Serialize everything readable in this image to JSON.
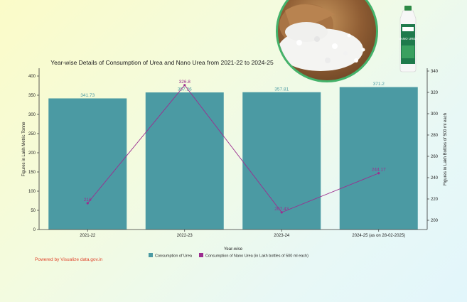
{
  "chart_data": {
    "type": "bar",
    "title": "Year-wise Details of Consumption of Urea and Nano Urea from 2021-22 to 2024-25",
    "categories": [
      "2021-22",
      "2022-23",
      "2023-24",
      "2024-25 (as on 28-02-2025)"
    ],
    "xlabel": "Year-wise",
    "ylabel_left": "Figures in Lakh Metric Tonne",
    "ylabel_right": "Figures in Lakh Bottles of 500 ml each",
    "ylim_left": [
      0,
      400
    ],
    "yticks_left": [
      0,
      50,
      100,
      150,
      200,
      250,
      300,
      350,
      400
    ],
    "ylim_right": [
      200,
      340
    ],
    "yticks_right": [
      200,
      220,
      240,
      260,
      280,
      300,
      320,
      340
    ],
    "legend_position": "bottom",
    "grid": false,
    "series": [
      {
        "name": "Consumption of Urea",
        "type": "bar",
        "axis": "left",
        "color": "#4b9aa3",
        "values": [
          341.73,
          357.26,
          357.81,
          371.2
        ]
      },
      {
        "name": "Consumption of Nano Urea (in Lakh bottles of 500 ml each)",
        "type": "line",
        "axis": "right",
        "color": "#9c2d8f",
        "values": [
          216.0,
          326.8,
          207.43,
          244.17
        ]
      }
    ]
  },
  "footer": {
    "powered_by": "Powered by Visualize data.gov.in"
  },
  "bottle": {
    "brand": "NANO UREA"
  }
}
